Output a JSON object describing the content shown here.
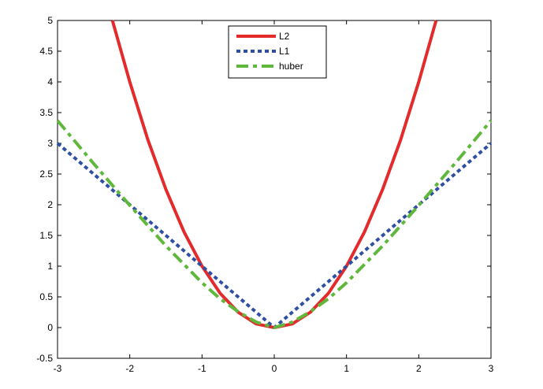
{
  "chart_data": {
    "type": "line",
    "x_ticks": [
      "-3",
      "-2",
      "-1",
      "0",
      "1",
      "2",
      "3"
    ],
    "y_ticks": [
      "-0.5",
      "0",
      "0.5",
      "1",
      "1.5",
      "2",
      "2.5",
      "3",
      "3.5",
      "4",
      "4.5",
      "5"
    ],
    "xlim": [
      -3,
      3
    ],
    "ylim": [
      -0.5,
      5
    ],
    "grid": false,
    "legend_position": "top-center",
    "series": [
      {
        "name": "L2",
        "color": "#e32b2b",
        "dash": "solid",
        "x": [
          -2.24,
          -2.0,
          -1.75,
          -1.5,
          -1.25,
          -1.0,
          -0.75,
          -0.5,
          -0.25,
          0,
          0.25,
          0.5,
          0.75,
          1.0,
          1.25,
          1.5,
          1.75,
          2.0,
          2.24
        ],
        "y": [
          5.0,
          4.0,
          3.06,
          2.25,
          1.56,
          1.0,
          0.56,
          0.25,
          0.06,
          0,
          0.06,
          0.25,
          0.56,
          1.0,
          1.56,
          2.25,
          3.06,
          4.0,
          5.0
        ]
      },
      {
        "name": "L1",
        "color": "#2f4fa2",
        "dash": "dotted",
        "x": [
          -3,
          -2,
          -1,
          0,
          1,
          2,
          3
        ],
        "y": [
          3,
          2,
          1,
          0,
          1,
          2,
          3
        ]
      },
      {
        "name": "huber",
        "color": "#5fb83b",
        "dash": "dashdot",
        "x": [
          -3,
          -2.5,
          -2,
          -1.5,
          -1.0,
          -0.75,
          -0.5,
          -0.25,
          0,
          0.25,
          0.5,
          0.75,
          1.0,
          1.5,
          2,
          2.5,
          3
        ],
        "y": [
          3.37,
          2.67,
          1.99,
          1.33,
          0.73,
          0.47,
          0.26,
          0.09,
          0,
          0.09,
          0.26,
          0.47,
          0.73,
          1.33,
          1.99,
          2.67,
          3.37
        ]
      }
    ]
  }
}
